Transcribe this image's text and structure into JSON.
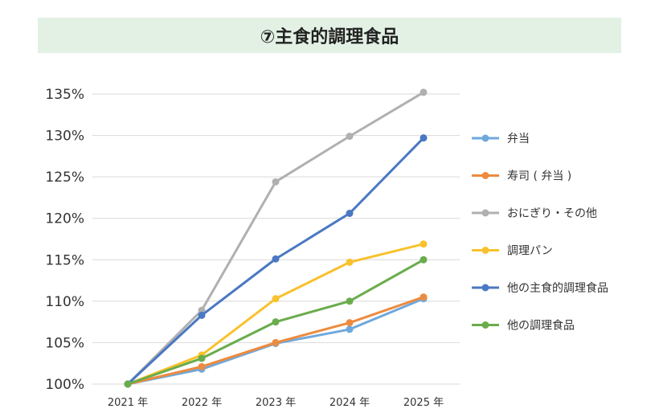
{
  "chart_data": {
    "type": "line",
    "title": "⑦主食的調理食品",
    "xlabel": "",
    "ylabel": "",
    "categories": [
      "2021 年",
      "2022 年",
      "2023 年",
      "2024 年",
      "2025 年"
    ],
    "ylim": [
      100,
      135
    ],
    "yticks": [
      "100%",
      "105%",
      "110%",
      "115%",
      "120%",
      "125%",
      "130%",
      "135%"
    ],
    "grid": true,
    "legend_position": "right",
    "series": [
      {
        "name": "弁当",
        "color": "#6fa8dc",
        "values": [
          100,
          101.8,
          104.9,
          106.6,
          110.3
        ]
      },
      {
        "name": "寿司 ( 弁当 )",
        "color": "#ed8b3f",
        "values": [
          100,
          102.1,
          105.0,
          107.4,
          110.5
        ]
      },
      {
        "name": "おにぎり・その他",
        "color": "#b0b0b0",
        "values": [
          100,
          108.9,
          124.4,
          129.9,
          135.2
        ]
      },
      {
        "name": "調理パン",
        "color": "#f8c12d",
        "values": [
          100,
          103.5,
          110.3,
          114.7,
          116.9
        ]
      },
      {
        "name": "他の主食的調理食品",
        "color": "#4a78c2",
        "values": [
          100,
          108.3,
          115.1,
          120.6,
          129.7
        ]
      },
      {
        "name": "他の調理食品",
        "color": "#6aac4c",
        "values": [
          100,
          103.1,
          107.5,
          110.0,
          115.0
        ]
      }
    ]
  }
}
